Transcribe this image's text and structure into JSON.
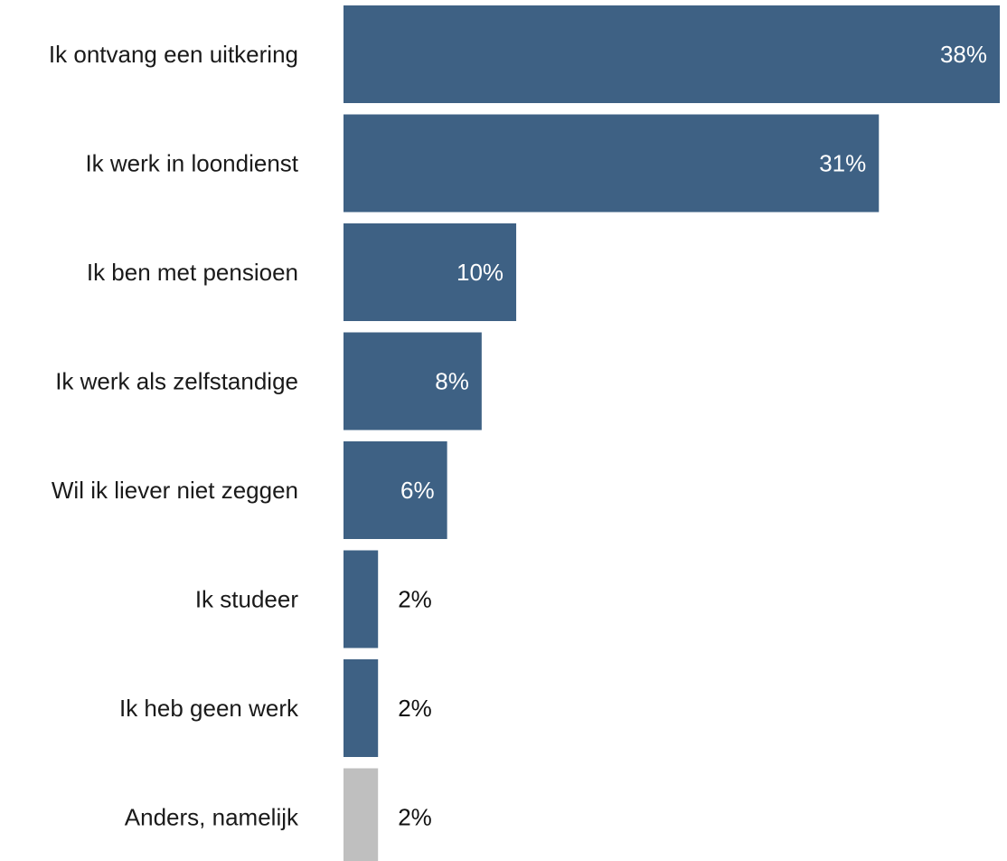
{
  "chart_data": {
    "type": "bar",
    "orientation": "horizontal",
    "title": "",
    "xlabel": "",
    "ylabel": "",
    "grid": false,
    "legend": "none",
    "value_suffix": "%",
    "xlim": [
      0,
      38
    ],
    "categories": [
      "Ik ontvang een uitkering",
      "Ik werk in loondienst",
      "Ik ben met pensioen",
      "Ik werk als zelfstandige",
      "Wil ik liever niet zeggen",
      "Ik studeer",
      "Ik heb geen werk",
      "Anders, namelijk"
    ],
    "values": [
      38,
      31,
      10,
      8,
      6,
      2,
      2,
      2
    ],
    "value_labels": [
      "38%",
      "31%",
      "10%",
      "8%",
      "6%",
      "2%",
      "2%",
      "2%"
    ],
    "bar_colors": [
      "#3e6184",
      "#3e6184",
      "#3e6184",
      "#3e6184",
      "#3e6184",
      "#3e6184",
      "#3e6184",
      "#bfbfbf"
    ],
    "label_color_inside": "#ffffff",
    "label_color_outside": "#111111"
  }
}
